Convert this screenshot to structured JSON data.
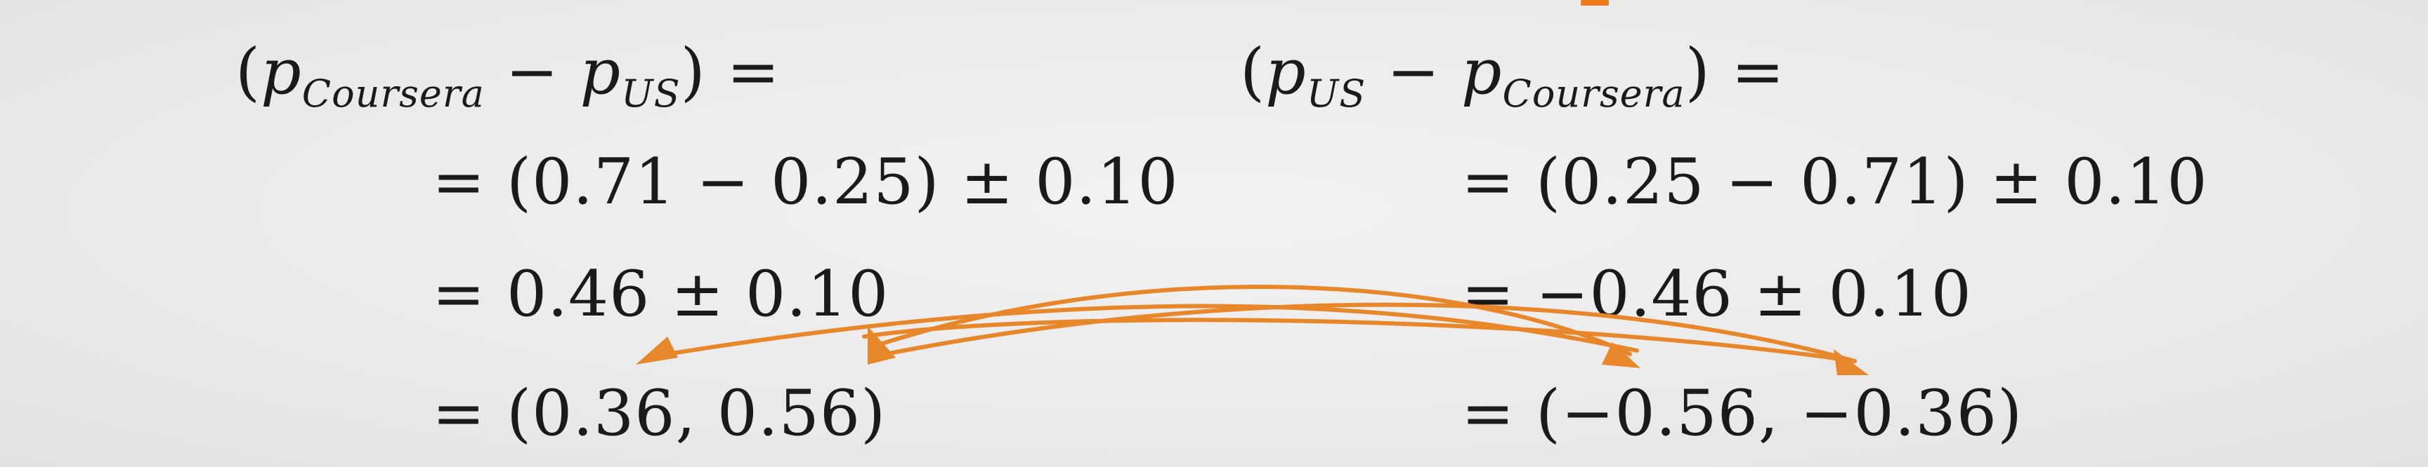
{
  "slide": {
    "left": {
      "header_open": "(",
      "p": "p",
      "sub1": "Coursera",
      "minus": " − ",
      "p2": "p",
      "sub2": "US",
      "header_close": ") =",
      "step1": "= (0.71 − 0.25) ± 0.10",
      "step2": "= 0.46 ± 0.10",
      "step3": "= (0.36, 0.56)"
    },
    "right": {
      "header_open": "(",
      "p": "p",
      "sub1": "US",
      "minus": " − ",
      "p2": "p",
      "sub2": "Coursera",
      "header_close": ") =",
      "step1": "= (0.25 − 0.71) ± 0.10",
      "step2": "= −0.46 ± 0.10",
      "step3": "= (−0.56, −0.36)"
    },
    "accent_color": "#e8862a"
  }
}
